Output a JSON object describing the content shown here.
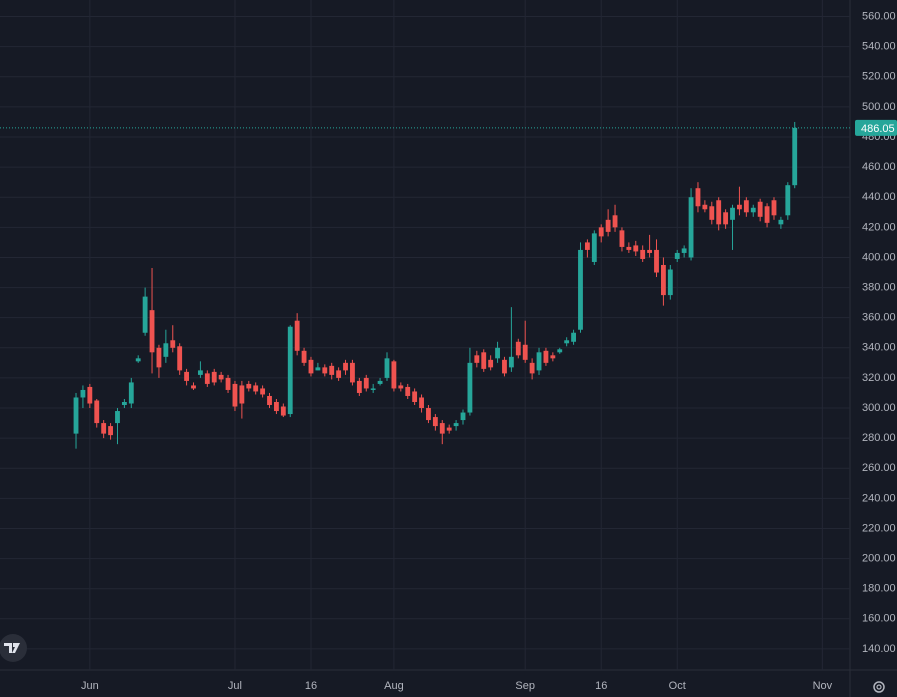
{
  "chart_data": {
    "type": "candlestick",
    "open": [
      283,
      307,
      314,
      305,
      290,
      288,
      290,
      302,
      303,
      331,
      350,
      365,
      340,
      334,
      345,
      341,
      324,
      315,
      322,
      323,
      324,
      322,
      320,
      316,
      315,
      316,
      315,
      313,
      308,
      304,
      301,
      296,
      358,
      338,
      332,
      325,
      327,
      328,
      325,
      330,
      330,
      318,
      320,
      312,
      316,
      320,
      331,
      315,
      314,
      311,
      307,
      300,
      294,
      290,
      287,
      288,
      292,
      297,
      335,
      337,
      332,
      333,
      332,
      327,
      344,
      342,
      330,
      325,
      338,
      335,
      337,
      343,
      344,
      352,
      410,
      397,
      420,
      425,
      428,
      418,
      407,
      408,
      405,
      405,
      405,
      395,
      375,
      399,
      403,
      400,
      446,
      435,
      434,
      438,
      430,
      425,
      435,
      438,
      430,
      437,
      434,
      438,
      422,
      428,
      448
    ],
    "high": [
      310,
      315,
      316,
      306,
      292,
      290,
      300,
      306,
      320,
      335,
      380,
      393,
      342,
      352,
      355,
      343,
      326,
      317,
      331,
      325,
      326,
      324,
      322,
      318,
      318,
      318,
      317,
      315,
      310,
      306,
      303,
      355,
      363,
      340,
      334,
      330,
      329,
      330,
      327,
      332,
      332,
      320,
      322,
      316,
      320,
      337,
      332,
      317,
      316,
      313,
      309,
      302,
      296,
      292,
      289,
      292,
      299,
      340,
      338,
      339,
      335,
      344,
      334,
      367,
      346,
      358,
      333,
      340,
      340,
      337,
      340,
      347,
      352,
      410,
      412,
      418,
      422,
      432,
      435,
      420,
      410,
      411,
      408,
      415,
      412,
      400,
      395,
      405,
      408,
      446,
      450,
      438,
      437,
      440,
      432,
      435,
      447,
      440,
      435,
      439,
      436,
      440,
      427,
      450,
      490
    ],
    "low": [
      273,
      300,
      300,
      287,
      280,
      279,
      276,
      300,
      300,
      330,
      348,
      323,
      320,
      330,
      337,
      322,
      315,
      312,
      320,
      314,
      315,
      317,
      310,
      298,
      293,
      311,
      309,
      307,
      300,
      296,
      294,
      294,
      335,
      328,
      321,
      325,
      321,
      319,
      318,
      322,
      315,
      308,
      311,
      310,
      315,
      318,
      311,
      311,
      306,
      302,
      297,
      290,
      285,
      276,
      283,
      285,
      289,
      295,
      327,
      324,
      325,
      330,
      321,
      324,
      333,
      330,
      319,
      322,
      328,
      331,
      336,
      341,
      342,
      350,
      400,
      395,
      410,
      414,
      417,
      404,
      403,
      401,
      397,
      400,
      387,
      368,
      372,
      397,
      400,
      398,
      430,
      430,
      422,
      418,
      419,
      405,
      428,
      427,
      427,
      424,
      420,
      425,
      419,
      425,
      446
    ],
    "close": [
      307,
      312,
      303,
      290,
      283,
      282,
      298,
      304,
      317,
      333,
      374,
      337,
      327,
      343,
      340,
      325,
      318,
      313,
      325,
      316,
      317,
      319,
      312,
      301,
      303,
      313,
      311,
      309,
      302,
      298,
      295,
      354,
      338,
      330,
      323,
      327,
      323,
      322,
      320,
      325,
      317,
      310,
      313,
      313,
      318,
      333,
      313,
      313,
      308,
      304,
      300,
      292,
      288,
      283,
      285,
      290,
      297,
      330,
      330,
      326,
      327,
      340,
      323,
      334,
      335,
      332,
      323,
      337,
      330,
      333,
      339,
      345,
      350,
      405,
      405,
      416,
      414,
      417,
      420,
      407,
      405,
      404,
      399,
      403,
      390,
      375,
      392,
      403,
      406,
      440,
      434,
      432,
      425,
      422,
      422,
      433,
      432,
      430,
      433,
      427,
      423,
      428,
      425,
      448,
      486.05
    ],
    "up_color": "#26a69a",
    "down_color": "#ef5350",
    "last_price": 486.05,
    "xlim": [
      -11,
      112
    ],
    "xticks": [
      {
        "value": 2,
        "label": "Jun"
      },
      {
        "value": 23,
        "label": "Jul"
      },
      {
        "value": 34,
        "label": "16"
      },
      {
        "value": 46,
        "label": "Aug"
      },
      {
        "value": 65,
        "label": "Sep"
      },
      {
        "value": 76,
        "label": "16"
      },
      {
        "value": 87,
        "label": "Oct"
      },
      {
        "value": 108,
        "label": "Nov"
      }
    ],
    "ylim": [
      126,
      571
    ],
    "yticks": [
      {
        "value": 140,
        "label": "140.00"
      },
      {
        "value": 160,
        "label": "160.00"
      },
      {
        "value": 180,
        "label": "180.00"
      },
      {
        "value": 200,
        "label": "200.00"
      },
      {
        "value": 220,
        "label": "220.00"
      },
      {
        "value": 240,
        "label": "240.00"
      },
      {
        "value": 260,
        "label": "260.00"
      },
      {
        "value": 280,
        "label": "280.00"
      },
      {
        "value": 300,
        "label": "300.00"
      },
      {
        "value": 320,
        "label": "320.00"
      },
      {
        "value": 340,
        "label": "340.00"
      },
      {
        "value": 360,
        "label": "360.00"
      },
      {
        "value": 380,
        "label": "380.00"
      },
      {
        "value": 400,
        "label": "400.00"
      },
      {
        "value": 420,
        "label": "420.00"
      },
      {
        "value": 440,
        "label": "440.00"
      },
      {
        "value": 460,
        "label": "460.00"
      },
      {
        "value": 480,
        "label": "480.00"
      },
      {
        "value": 500,
        "label": "500.00"
      },
      {
        "value": 520,
        "label": "520.00"
      },
      {
        "value": 540,
        "label": "540.00"
      },
      {
        "value": 560,
        "label": "560.00"
      }
    ],
    "grid": true
  }
}
